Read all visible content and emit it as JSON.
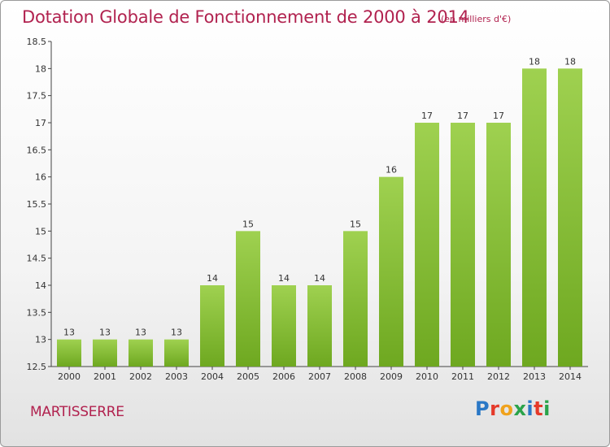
{
  "chart_data": {
    "type": "bar",
    "title": "Dotation Globale de Fonctionnement de 2000 à 2014",
    "subtitle": "(en milliers d'€)",
    "categories": [
      "2000",
      "2001",
      "2002",
      "2003",
      "2004",
      "2005",
      "2006",
      "2007",
      "2008",
      "2009",
      "2010",
      "2011",
      "2012",
      "2013",
      "2014"
    ],
    "values": [
      13,
      13,
      13,
      13,
      14,
      15,
      14,
      14,
      15,
      16,
      17,
      17,
      17,
      18,
      18
    ],
    "ylim": [
      12.5,
      18.5
    ],
    "yticks": [
      "12.5",
      "13",
      "13.5",
      "14",
      "14.5",
      "15",
      "15.5",
      "16",
      "16.5",
      "17",
      "17.5",
      "18",
      "18.5"
    ],
    "grid": false,
    "colors": {
      "bar_light": "#9fd150",
      "bar_dark": "#6ea820",
      "title": "#b1224f"
    }
  },
  "footer": {
    "commune": "MARTISSERRE",
    "logo_text": "Proxiti",
    "logo_colors": [
      "#2a78c6",
      "#e53a2a",
      "#f0a21c",
      "#2aa34a",
      "#2a78c6",
      "#e53a2a",
      "#2aa34a"
    ]
  }
}
